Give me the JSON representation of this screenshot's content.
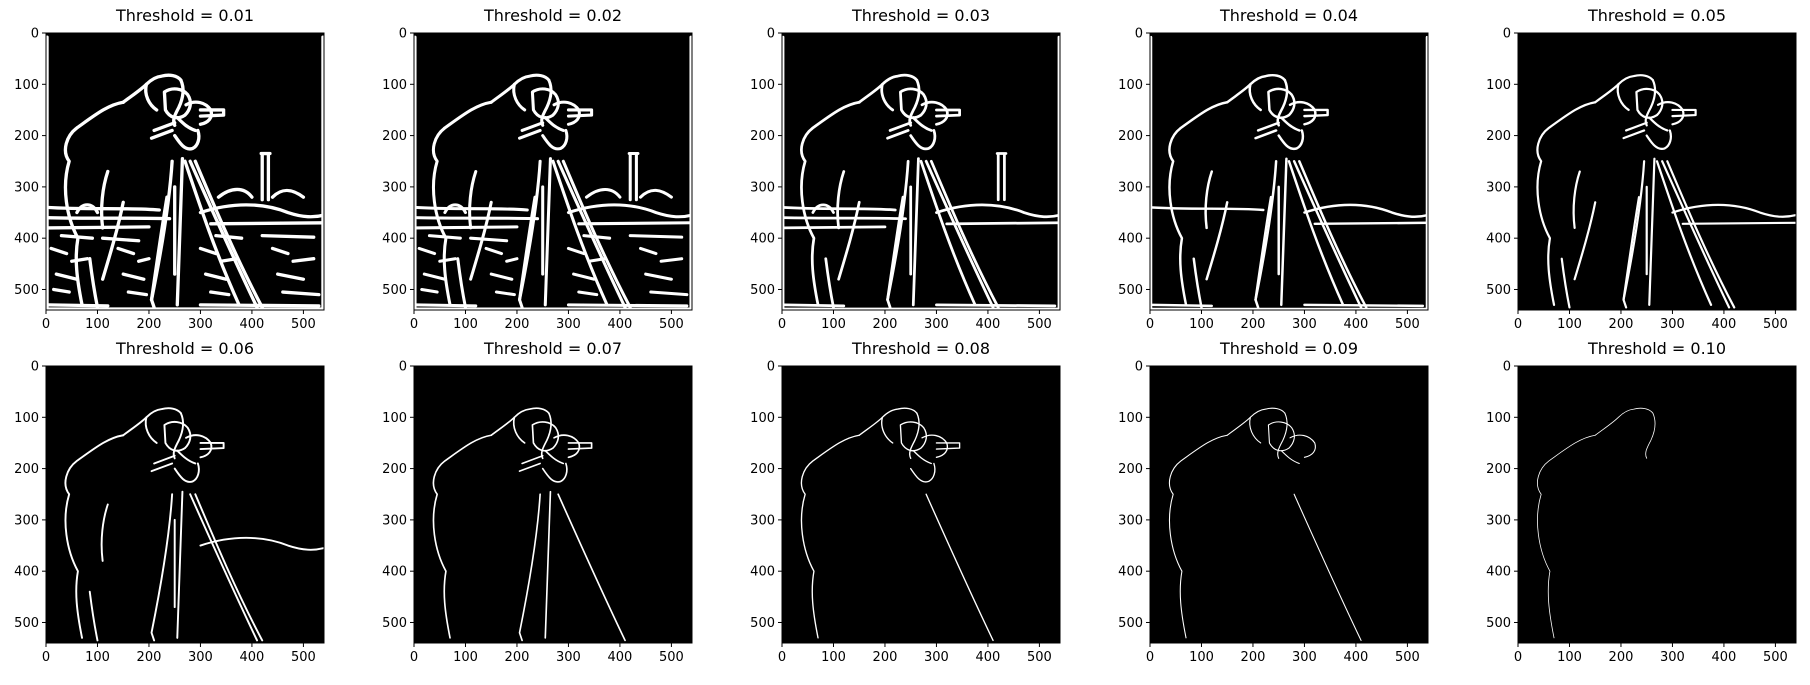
{
  "figure": {
    "background": "#ffffff",
    "image_background": "#000000",
    "edge_color": "#ffffff",
    "colormap": "gray"
  },
  "panels": [
    {
      "title": "Threshold = 0.01",
      "threshold": 0.01
    },
    {
      "title": "Threshold = 0.02",
      "threshold": 0.02
    },
    {
      "title": "Threshold = 0.03",
      "threshold": 0.03
    },
    {
      "title": "Threshold = 0.04",
      "threshold": 0.04
    },
    {
      "title": "Threshold = 0.05",
      "threshold": 0.05
    },
    {
      "title": "Threshold = 0.06",
      "threshold": 0.06
    },
    {
      "title": "Threshold = 0.07",
      "threshold": 0.07
    },
    {
      "title": "Threshold = 0.08",
      "threshold": 0.08
    },
    {
      "title": "Threshold = 0.09",
      "threshold": 0.09
    },
    {
      "title": "Threshold = 0.10",
      "threshold": 0.1
    }
  ],
  "axes": {
    "x_ticks": [
      0,
      100,
      200,
      300,
      400,
      500
    ],
    "y_ticks": [
      0,
      100,
      200,
      300,
      400,
      500
    ],
    "x_range": [
      0,
      540
    ],
    "y_range": [
      0,
      540
    ]
  }
}
